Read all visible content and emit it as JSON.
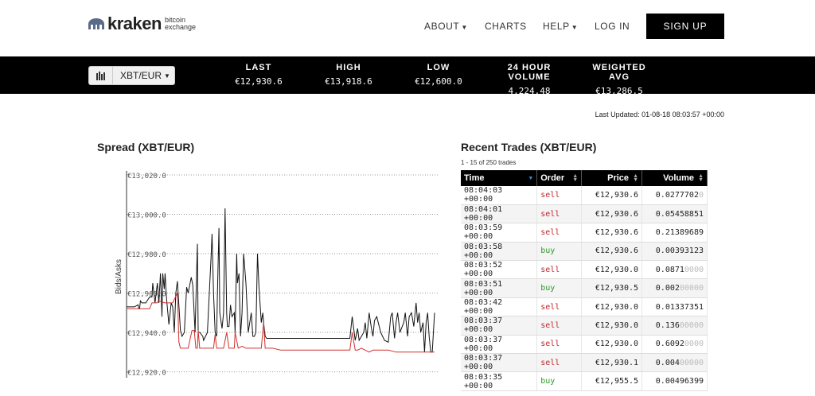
{
  "header": {
    "logo_word": "kraken",
    "logo_sub_1": "bitcoin",
    "logo_sub_2": "exchange",
    "nav": [
      {
        "label": "ABOUT",
        "dropdown": true
      },
      {
        "label": "CHARTS",
        "dropdown": false
      },
      {
        "label": "HELP",
        "dropdown": true
      },
      {
        "label": "LOG IN",
        "dropdown": false
      }
    ],
    "signup_label": "SIGN UP"
  },
  "ticker": {
    "pair": "XBT/EUR",
    "stats": [
      {
        "label": "LAST",
        "value": "€12,930.6"
      },
      {
        "label": "HIGH",
        "value": "€13,918.6"
      },
      {
        "label": "LOW",
        "value": "€12,600.0"
      },
      {
        "label": "24 HOUR VOLUME",
        "value": "4,224.48"
      },
      {
        "label": "WEIGHTED AVG",
        "value": "€13,286.5"
      }
    ]
  },
  "last_updated": "Last Updated: 01-08-18 08:03:57 +00:00",
  "spread": {
    "title": "Spread (XBT/EUR)",
    "ylabel": "Bids/Asks"
  },
  "chart_data": {
    "type": "line",
    "title": "Spread (XBT/EUR)",
    "ylabel": "Bids/Asks",
    "ylim": [
      12917,
      13022
    ],
    "yticks": [
      "€13,020.0",
      "€13,000.0",
      "€12,980.0",
      "€12,960.0",
      "€12,940.0",
      "€12,920.0"
    ],
    "ytick_values": [
      13020,
      13000,
      12980,
      12960,
      12940,
      12920
    ],
    "grid": true,
    "series": [
      {
        "color": "#111111",
        "x": [
          0,
          7,
          10,
          15,
          16,
          17,
          18,
          20,
          25,
          30,
          33,
          34,
          37,
          40,
          42,
          44,
          46,
          47,
          49,
          50,
          52,
          55,
          58,
          60,
          62,
          64,
          66,
          70,
          72,
          75,
          78,
          80,
          84,
          86,
          89,
          92,
          93,
          95,
          99,
          100,
          105,
          110,
          111,
          113,
          115,
          117,
          118,
          120,
          121,
          124,
          126,
          128,
          130,
          131,
          133,
          135,
          137,
          140,
          141,
          143,
          144,
          146,
          148,
          150,
          152,
          155,
          158,
          160,
          162,
          164,
          166,
          168,
          170,
          172,
          175,
          177,
          178,
          180,
          182,
          185,
          190,
          195,
          200,
          205,
          210,
          215,
          220,
          230,
          240,
          250,
          260,
          270,
          280,
          290,
          293,
          297,
          300,
          302,
          305,
          308,
          310,
          312,
          315,
          318,
          320,
          322,
          325,
          330,
          335,
          340,
          343,
          345,
          348,
          350,
          352,
          355,
          357,
          360,
          362,
          365,
          367,
          370,
          373,
          376,
          378,
          380,
          382,
          385,
          387,
          389,
          391,
          393,
          395,
          397,
          400
        ],
        "y": [
          12953,
          12953,
          12953,
          12954,
          12952,
          12952,
          12956,
          12955,
          12955,
          12958,
          12958,
          12965,
          12955,
          12965,
          12955,
          12970,
          12948,
          12970,
          12962,
          12970,
          12957,
          12944,
          12955,
          12953,
          12940,
          12960,
          12966,
          12941,
          12938,
          12940,
          12963,
          12960,
          12968,
          12964,
          12940,
          12985,
          12940,
          12940,
          12938,
          12936,
          12940,
          12980,
          12990,
          12960,
          12940,
          12938,
          12960,
          12993,
          12950,
          12942,
          12950,
          13003,
          12950,
          12943,
          12943,
          12954,
          12948,
          12950,
          12940,
          12980,
          12965,
          12970,
          12938,
          12950,
          12980,
          12965,
          12940,
          12945,
          12950,
          12938,
          12938,
          12940,
          12980,
          12963,
          12945,
          12950,
          12945,
          12938,
          12937,
          12937,
          12937,
          12937,
          12937,
          12937,
          12937,
          12937,
          12937,
          12937,
          12937,
          12937,
          12937,
          12937,
          12937,
          12937,
          12948,
          12936,
          12942,
          12936,
          12938,
          12940,
          12945,
          12937,
          12950,
          12942,
          12938,
          12946,
          12948,
          12940,
          12936,
          12935,
          12948,
          12950,
          12937,
          12945,
          12950,
          12940,
          12942,
          12945,
          12950,
          12938,
          12948,
          12950,
          12943,
          12955,
          12945,
          12950,
          12940,
          12945,
          12930,
          12945,
          12950,
          12938,
          12930,
          12930,
          12950
        ]
      },
      {
        "color": "#d0302e",
        "x": [
          0,
          10,
          20,
          30,
          33,
          34,
          40,
          41,
          50,
          60,
          66,
          68,
          70,
          75,
          80,
          85,
          88,
          90,
          92,
          93,
          95,
          100,
          105,
          110,
          113,
          115,
          117,
          120,
          126,
          130,
          133,
          140,
          141,
          145,
          150,
          155,
          160,
          165,
          170,
          175,
          178,
          180,
          183,
          185,
          190,
          200,
          210,
          220,
          230,
          240,
          250,
          260,
          270,
          280,
          290,
          293,
          297,
          300,
          305,
          310,
          315,
          320,
          330,
          340,
          350,
          360,
          370,
          380,
          390,
          400
        ],
        "y": [
          12952,
          12952,
          12952,
          12952,
          12955,
          12955,
          12955,
          12956,
          12955,
          12955,
          12960,
          12935,
          12932,
          12932,
          12932,
          12941,
          12941,
          12932,
          12932,
          12941,
          12932,
          12932,
          12932,
          12932,
          12932,
          12939,
          12932,
          12932,
          12932,
          12940,
          12932,
          12932,
          12940,
          12932,
          12933,
          12932,
          12932,
          12932,
          12932,
          12932,
          12945,
          12932,
          12932,
          12932,
          12932,
          12931,
          12931,
          12931,
          12931,
          12931,
          12931,
          12931,
          12931,
          12931,
          12931,
          12940,
          12931,
          12931,
          12932,
          12931,
          12930,
          12931,
          12931,
          12931,
          12930,
          12930,
          12930,
          12930,
          12930,
          12930
        ]
      }
    ]
  },
  "trades": {
    "title": "Recent Trades (XBT/EUR)",
    "count": "1 - 15 of 250 trades",
    "columns": [
      "Time",
      "Order",
      "Price",
      "Volume"
    ],
    "rows": [
      {
        "time": "08:04:03 +00:00",
        "order": "sell",
        "price": "€12,930.6",
        "vol_main": "0.0277702",
        "vol_fade": "0"
      },
      {
        "time": "08:04:01 +00:00",
        "order": "sell",
        "price": "€12,930.6",
        "vol_main": "0.05458851",
        "vol_fade": ""
      },
      {
        "time": "08:03:59 +00:00",
        "order": "sell",
        "price": "€12,930.6",
        "vol_main": "0.21389689",
        "vol_fade": ""
      },
      {
        "time": "08:03:58 +00:00",
        "order": "buy",
        "price": "€12,930.6",
        "vol_main": "0.00393123",
        "vol_fade": ""
      },
      {
        "time": "08:03:52 +00:00",
        "order": "sell",
        "price": "€12,930.0",
        "vol_main": "0.0871",
        "vol_fade": "0000"
      },
      {
        "time": "08:03:51 +00:00",
        "order": "buy",
        "price": "€12,930.5",
        "vol_main": "0.002",
        "vol_fade": "00000"
      },
      {
        "time": "08:03:42 +00:00",
        "order": "sell",
        "price": "€12,930.0",
        "vol_main": "0.01337351",
        "vol_fade": ""
      },
      {
        "time": "08:03:37 +00:00",
        "order": "sell",
        "price": "€12,930.0",
        "vol_main": "0.136",
        "vol_fade": "00000"
      },
      {
        "time": "08:03:37 +00:00",
        "order": "sell",
        "price": "€12,930.0",
        "vol_main": "0.6092",
        "vol_fade": "0000"
      },
      {
        "time": "08:03:37 +00:00",
        "order": "sell",
        "price": "€12,930.1",
        "vol_main": "0.004",
        "vol_fade": "00000"
      },
      {
        "time": "08:03:35 +00:00",
        "order": "buy",
        "price": "€12,955.5",
        "vol_main": "0.00496399",
        "vol_fade": ""
      }
    ]
  }
}
